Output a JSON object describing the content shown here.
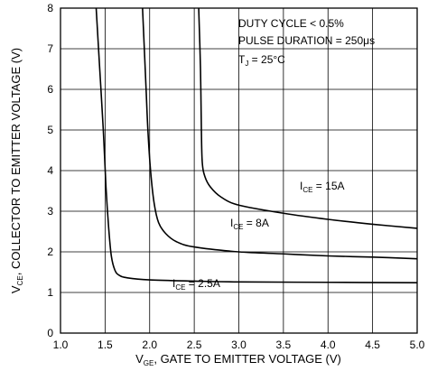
{
  "chart_data": {
    "type": "line",
    "xlabel": {
      "main": "V",
      "sub": "GE",
      "rest": ", GATE TO EMITTER VOLTAGE (V)"
    },
    "ylabel": {
      "main": "V",
      "sub": "CE",
      "rest": ", COLLECTOR TO EMITTER VOLTAGE (V)"
    },
    "xlim": [
      1.0,
      5.0
    ],
    "ylim": [
      0,
      8
    ],
    "x_ticks": [
      "1.0",
      "1.5",
      "2.0",
      "2.5",
      "3.0",
      "3.5",
      "4.0",
      "4.5",
      "5.0"
    ],
    "y_ticks": [
      "0",
      "1",
      "2",
      "3",
      "4",
      "5",
      "6",
      "7",
      "8"
    ],
    "grid": true,
    "conditions": {
      "duty_cycle": "DUTY CYCLE < 0.5%",
      "pulse_duration": "PULSE DURATION = 250μs",
      "tj_main": "T",
      "tj_sub": "J",
      "tj_rest": " = 25°C"
    },
    "series": [
      {
        "label_main": "I",
        "label_sub": "CE",
        "label_rest": " = 2.5A",
        "points": [
          [
            1.4,
            8.0
          ],
          [
            1.44,
            6.5
          ],
          [
            1.48,
            5.0
          ],
          [
            1.51,
            3.6
          ],
          [
            1.54,
            2.6
          ],
          [
            1.57,
            1.9
          ],
          [
            1.61,
            1.55
          ],
          [
            1.66,
            1.42
          ],
          [
            1.75,
            1.36
          ],
          [
            2.0,
            1.31
          ],
          [
            2.5,
            1.28
          ],
          [
            3.0,
            1.26
          ],
          [
            4.0,
            1.25
          ],
          [
            5.0,
            1.24
          ]
        ]
      },
      {
        "label_main": "I",
        "label_sub": "CE",
        "label_rest": " = 8A",
        "points": [
          [
            1.92,
            8.0
          ],
          [
            1.94,
            7.0
          ],
          [
            1.96,
            6.0
          ],
          [
            1.98,
            5.0
          ],
          [
            2.01,
            4.0
          ],
          [
            2.05,
            3.2
          ],
          [
            2.1,
            2.72
          ],
          [
            2.18,
            2.45
          ],
          [
            2.3,
            2.25
          ],
          [
            2.5,
            2.12
          ],
          [
            3.0,
            2.0
          ],
          [
            3.5,
            1.95
          ],
          [
            4.0,
            1.9
          ],
          [
            4.5,
            1.87
          ],
          [
            5.0,
            1.83
          ]
        ]
      },
      {
        "label_main": "I",
        "label_sub": "CE",
        "label_rest": " = 15A",
        "points": [
          [
            2.55,
            8.0
          ],
          [
            2.57,
            6.5
          ],
          [
            2.58,
            5.0
          ],
          [
            2.59,
            4.2
          ],
          [
            2.62,
            3.85
          ],
          [
            2.68,
            3.6
          ],
          [
            2.8,
            3.35
          ],
          [
            3.0,
            3.15
          ],
          [
            3.5,
            2.95
          ],
          [
            4.0,
            2.8
          ],
          [
            4.5,
            2.68
          ],
          [
            5.0,
            2.58
          ]
        ]
      }
    ]
  }
}
